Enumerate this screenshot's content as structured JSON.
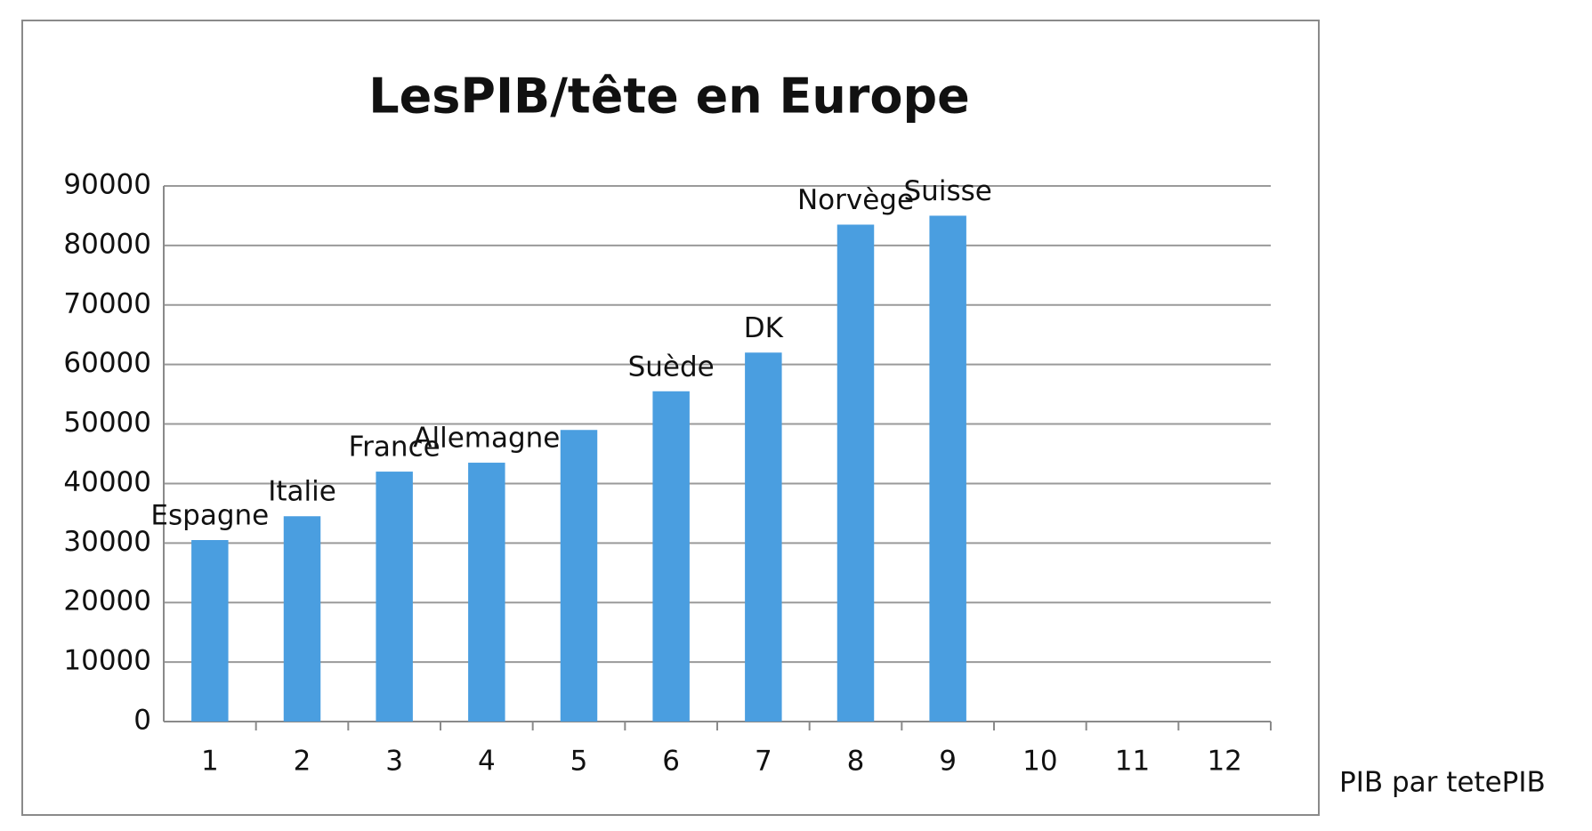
{
  "chart_data": {
    "type": "bar",
    "title": "LesPIB/tête en Europe",
    "x_label": "PIB par tetePIB",
    "categories": [
      1,
      2,
      3,
      4,
      5,
      6,
      7,
      8,
      9,
      10,
      11,
      12
    ],
    "values": [
      30500,
      34500,
      42000,
      43500,
      49000,
      55500,
      62000,
      83500,
      85000,
      null,
      null,
      null
    ],
    "bar_labels": [
      "Espagne",
      "Italie",
      "France",
      "Allemagne",
      null,
      "Suède",
      "DK",
      "Norvège",
      "Suisse",
      null,
      null,
      null
    ],
    "color": "#4a9ee0",
    "ylim": [
      0,
      90000
    ],
    "yticks": [
      0,
      10000,
      20000,
      30000,
      40000,
      50000,
      60000,
      70000,
      80000,
      90000
    ],
    "grid": true
  }
}
